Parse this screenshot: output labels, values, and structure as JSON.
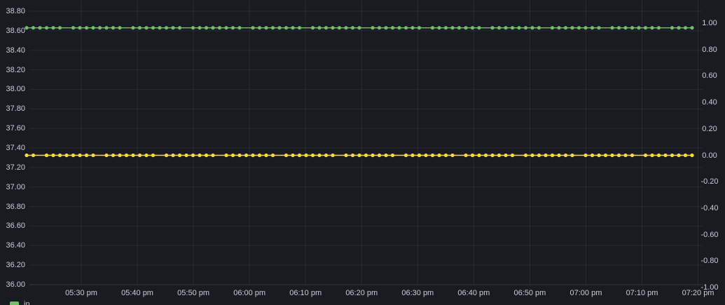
{
  "colors": {
    "background": "#181b1f",
    "grid": "rgba(204,204,220,0.09)",
    "axis_line": "rgba(204,204,220,0.16)",
    "axis_text": "#ccccdc",
    "series_green": "#73bf69",
    "series_yellow": "#fade2a"
  },
  "chart_data": {
    "type": "line",
    "title": "",
    "style_note": "time series with point markers, dark theme, constant flat series",
    "grid": true,
    "x_axis": {
      "tick_labels": [
        "05:30 pm",
        "05:40 pm",
        "05:50 pm",
        "06:00 pm",
        "06:10 pm",
        "06:20 pm",
        "06:30 pm",
        "06:40 pm",
        "06:50 pm",
        "07:00 pm",
        "07:10 pm",
        "07:20 pm"
      ]
    },
    "y_axis_left": {
      "max": 38.8,
      "min": 36.0,
      "step": 0.2,
      "tick_labels": [
        "38.80",
        "38.60",
        "38.40",
        "38.20",
        "38.00",
        "37.80",
        "37.60",
        "37.40",
        "37.20",
        "37.00",
        "36.80",
        "36.60",
        "36.40",
        "36.20",
        "36.00"
      ]
    },
    "y_axis_right": {
      "max": 1.0,
      "min": -1.0,
      "step": 0.2,
      "tick_labels": [
        "1.00",
        "0.80",
        "0.60",
        "0.40",
        "0.20",
        "0.00",
        "-0.20",
        "-0.40",
        "-0.60",
        "-0.80",
        "-1.00"
      ]
    },
    "series": [
      {
        "name": "in",
        "color": "#73bf69",
        "axis": "left",
        "marker": "circle",
        "constant_value": 38.63
      },
      {
        "name": "",
        "color": "#fade2a",
        "axis": "right",
        "marker": "circle",
        "constant_value": 0.0
      }
    ],
    "legend": {
      "position": "bottom-left",
      "items": [
        {
          "label": "in",
          "color": "#73bf69"
        }
      ]
    }
  }
}
